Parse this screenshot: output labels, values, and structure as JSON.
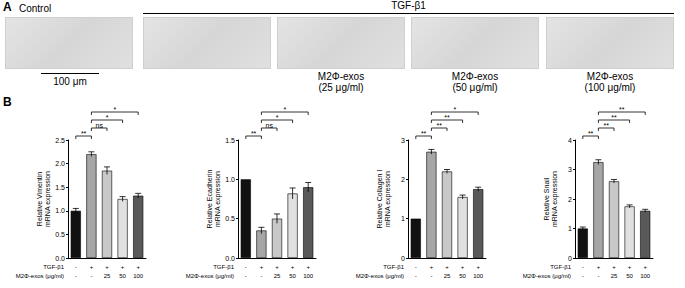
{
  "panel_a": {
    "label": "A",
    "scale_bar": "100 μm",
    "control": {
      "title": "Control",
      "captions": [
        null
      ]
    },
    "treatment": {
      "title": "TGF-β1",
      "captions": [
        null,
        "M2Φ-exos\n(25 μg/ml)",
        "M2Φ-exos\n(50 μg/ml)",
        "M2Φ-exos\n(100 μg/ml)"
      ]
    }
  },
  "panel_b": {
    "label": "B"
  },
  "chart_data": [
    {
      "type": "bar",
      "y_label": "Relative Vimentin\nmRNA expression",
      "categories": [
        "-\n-",
        "+\n-",
        "+\n25",
        "+\n50",
        "+\n100"
      ],
      "x_row_labels": [
        "TGF-β1",
        "M2Φ-exos (μg/ml)"
      ],
      "values": [
        1.0,
        2.2,
        1.85,
        1.25,
        1.32
      ],
      "errors": [
        0.05,
        0.05,
        0.08,
        0.05,
        0.05
      ],
      "colors": [
        "#111111",
        "#a6a6a6",
        "#c8c8c8",
        "#e0e0e0",
        "#595959"
      ],
      "ylim": [
        0,
        2.5
      ],
      "yticks": [
        {
          "value": 0,
          "label": "0.0"
        },
        0.5,
        {
          "value": 1,
          "label": "1.0"
        },
        1.5,
        {
          "value": 2,
          "label": "2.0"
        },
        2.5
      ],
      "grid": false,
      "data_labels": false,
      "significance": [
        {
          "from": 0,
          "to": 1,
          "text": "**"
        },
        {
          "from": 1,
          "to": 2,
          "text": "ns"
        },
        {
          "from": 1,
          "to": 3,
          "text": "*"
        },
        {
          "from": 1,
          "to": 4,
          "text": "*"
        }
      ]
    },
    {
      "type": "bar",
      "y_label": "Relative Ecadherin\nmRNA expression",
      "categories": [
        "-\n-",
        "+\n-",
        "+\n25",
        "+\n50",
        "+\n100"
      ],
      "x_row_labels": [
        "TGF-β1",
        "M2Φ-exos (μg/ml)"
      ],
      "values": [
        1.0,
        0.35,
        0.5,
        0.82,
        0.9
      ],
      "errors": [
        0,
        0.04,
        0.06,
        0.07,
        0.06
      ],
      "colors": [
        "#111111",
        "#a6a6a6",
        "#c8c8c8",
        "#e0e0e0",
        "#595959"
      ],
      "ylim": [
        0,
        1.5
      ],
      "yticks": [
        {
          "value": 0,
          "label": "0.0"
        },
        0.5,
        {
          "value": 1,
          "label": "1.0"
        },
        1.5
      ],
      "grid": false,
      "data_labels": false,
      "significance": [
        {
          "from": 0,
          "to": 1,
          "text": "**"
        },
        {
          "from": 1,
          "to": 2,
          "text": "ns"
        },
        {
          "from": 1,
          "to": 3,
          "text": "*"
        },
        {
          "from": 1,
          "to": 4,
          "text": "*"
        }
      ]
    },
    {
      "type": "bar",
      "y_label": "Relative Collagen Ⅰ\nmRNA expression",
      "categories": [
        "-\n-",
        "+\n-",
        "+\n25",
        "+\n50",
        "+\n100"
      ],
      "x_row_labels": [
        "TGF-β1",
        "M2Φ-exos (μg/ml)"
      ],
      "values": [
        1.0,
        2.7,
        2.2,
        1.55,
        1.75
      ],
      "errors": [
        0,
        0.06,
        0.05,
        0.05,
        0.05
      ],
      "colors": [
        "#111111",
        "#a6a6a6",
        "#c8c8c8",
        "#e0e0e0",
        "#595959"
      ],
      "ylim": [
        0,
        3
      ],
      "yticks": [
        0,
        1,
        2,
        3
      ],
      "grid": false,
      "data_labels": false,
      "significance": [
        {
          "from": 0,
          "to": 1,
          "text": "**"
        },
        {
          "from": 1,
          "to": 2,
          "text": "**"
        },
        {
          "from": 1,
          "to": 3,
          "text": "**"
        },
        {
          "from": 1,
          "to": 4,
          "text": "*"
        }
      ]
    },
    {
      "type": "bar",
      "y_label": "Relative Snail\nmRNA expression",
      "categories": [
        "-\n-",
        "+\n-",
        "+\n25",
        "+\n50",
        "+\n100"
      ],
      "x_row_labels": [
        "TGF-β1",
        "M2Φ-exos (μg/ml)"
      ],
      "values": [
        1.0,
        3.25,
        2.6,
        1.75,
        1.6
      ],
      "errors": [
        0.05,
        0.08,
        0.06,
        0.05,
        0.05
      ],
      "colors": [
        "#111111",
        "#a6a6a6",
        "#c8c8c8",
        "#e0e0e0",
        "#595959"
      ],
      "ylim": [
        0,
        4
      ],
      "yticks": [
        0,
        1,
        2,
        3,
        4
      ],
      "grid": false,
      "data_labels": false,
      "significance": [
        {
          "from": 0,
          "to": 1,
          "text": "**"
        },
        {
          "from": 1,
          "to": 2,
          "text": "**"
        },
        {
          "from": 1,
          "to": 3,
          "text": "**"
        },
        {
          "from": 1,
          "to": 4,
          "text": "**"
        }
      ]
    }
  ]
}
